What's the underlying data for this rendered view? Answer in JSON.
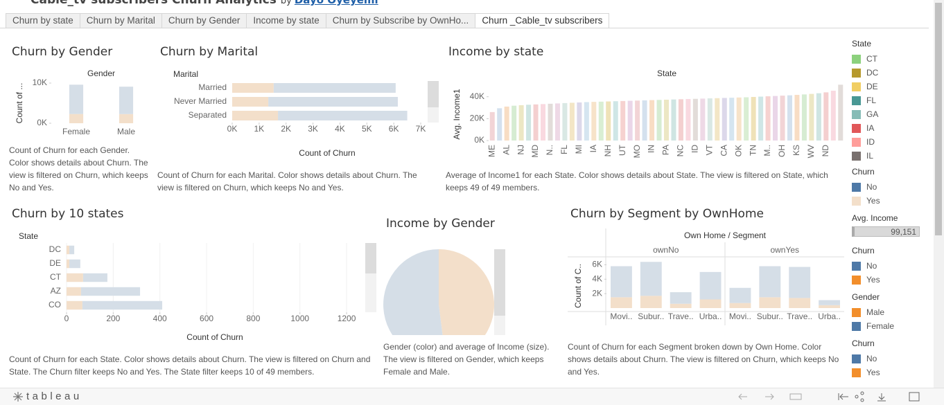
{
  "header": {
    "title": "Cable_tv subscribers Churn Analytics",
    "by": "by",
    "author": "Dayo Oyeyemi"
  },
  "tabs": [
    "Churn by state",
    "Churn by Marital",
    "Churn by Gender",
    "Income by state",
    "Churn by Subscribe by OwnHo...",
    "Churn _Cable_tv subscribers"
  ],
  "active_tab": 5,
  "chart_data": [
    {
      "type": "bar",
      "title": "Churn by Gender",
      "header": "Gender",
      "ylabel": "Count of ...",
      "categories": [
        "Female",
        "Male"
      ],
      "series": [
        {
          "color": "#f3dfca",
          "values": [
            2300,
            2280
          ]
        },
        {
          "color": "#d5dee7",
          "values": [
            7300,
            6820
          ]
        }
      ],
      "ylim": [
        0,
        10000
      ],
      "yticks": [
        {
          "value": 0,
          "label": "0K"
        },
        {
          "value": 10000,
          "label": "10K"
        }
      ],
      "caption": "Count of Churn for each Gender.  Color shows details about Churn.  The view is filtered on Churn, which keeps No and Yes."
    },
    {
      "type": "bar",
      "orientation": "horizontal",
      "title": "Churn by Marital",
      "header": "Marital",
      "xlabel": "Count of Churn",
      "categories": [
        "Married",
        "Never Married",
        "Separated"
      ],
      "series": [
        {
          "color": "#f3dfca",
          "values": [
            1540,
            1340,
            1700
          ]
        },
        {
          "color": "#d5dee7",
          "values": [
            4530,
            4810,
            4800
          ]
        }
      ],
      "xlim": [
        0,
        7000
      ],
      "xticks": [
        {
          "value": 0,
          "label": "0K"
        },
        {
          "value": 1000,
          "label": "1K"
        },
        {
          "value": 2000,
          "label": "2K"
        },
        {
          "value": 3000,
          "label": "3K"
        },
        {
          "value": 4000,
          "label": "4K"
        },
        {
          "value": 5000,
          "label": "5K"
        },
        {
          "value": 6000,
          "label": "6K"
        },
        {
          "value": 7000,
          "label": "7K"
        }
      ],
      "caption": "Count of Churn for each Marital.  Color shows details about Churn. The view is filtered on Churn, which keeps No and Yes."
    },
    {
      "type": "bar",
      "title": "Income by state",
      "header": "State",
      "ylabel": "Avg. Income1",
      "categories": [
        "ME",
        null,
        "AL",
        null,
        "NJ",
        null,
        "MD",
        null,
        "N..",
        null,
        "FL",
        null,
        "MI",
        null,
        "IA",
        null,
        "NH",
        null,
        "UT",
        null,
        "MO",
        null,
        "IN",
        null,
        "PA",
        null,
        "NC",
        null,
        "ID",
        null,
        "VT",
        null,
        "CA",
        null,
        "OK",
        null,
        "TN",
        null,
        "M..",
        null,
        "OH",
        null,
        "KS",
        null,
        "WV",
        null,
        "ND",
        null,
        null
      ],
      "values": [
        26000,
        29500,
        31000,
        31800,
        32300,
        32700,
        33000,
        33300,
        33600,
        33900,
        34200,
        34500,
        34800,
        35100,
        35300,
        35500,
        35700,
        35900,
        36100,
        36300,
        36500,
        36700,
        36900,
        37100,
        37300,
        37500,
        37700,
        37900,
        38100,
        38300,
        38500,
        38700,
        38900,
        39100,
        39300,
        39500,
        39800,
        40100,
        40400,
        40700,
        41000,
        41300,
        41700,
        42100,
        42600,
        43200,
        44000,
        45500,
        51000
      ],
      "palette": [
        "#f2d4d6",
        "#d4e1ee",
        "#f8ddc4",
        "#d6ecd2",
        "#ece7c4",
        "#cfe5e2",
        "#f4cfcf",
        "#f9d9e0",
        "#e2dcd9",
        "#eed9e6",
        "#d9e8e4",
        "#f3e6c6",
        "#dcd8ea",
        "#d5e5f0",
        "#f7e3c9",
        "#d9eed3",
        "#efe2b8",
        "#cfe6e6",
        "#f6d2d0",
        "#ead6e8"
      ],
      "ylim": [
        0,
        55000
      ],
      "yticks": [
        {
          "value": 0,
          "label": "0K"
        },
        {
          "value": 20000,
          "label": "20K"
        },
        {
          "value": 40000,
          "label": "40K"
        }
      ],
      "caption": "Average of Income1 for each State.  Color shows details about State. The view is filtered on State, which keeps 49 of 49 members."
    },
    {
      "type": "bar",
      "orientation": "horizontal",
      "title": "Churn by 10 states",
      "header": "State",
      "xlabel": "Count of Churn",
      "categories": [
        "DC",
        "DE",
        "CT",
        "AZ",
        "CO"
      ],
      "series": [
        {
          "color": "#f3dfca",
          "values": [
            12,
            12,
            71,
            62,
            68
          ]
        },
        {
          "color": "#d5dee7",
          "values": [
            21,
            47,
            104,
            253,
            342
          ]
        }
      ],
      "xlim": [
        0,
        1280
      ],
      "xticks": [
        0,
        200,
        400,
        600,
        800,
        1000,
        1200
      ],
      "grid": true,
      "caption": "Count of Churn for each State.  Color shows details about Churn. The view is filtered on Churn and State. The Churn filter keeps No and Yes. The State filter keeps 10 of 49 members."
    },
    {
      "type": "pie",
      "title": "Income by Gender",
      "values": [
        36200,
        39200
      ],
      "colors": [
        "#f3dfca",
        "#d5dee7"
      ],
      "caption": "Gender (color) and average of Income (size).  The view is filtered on Gender, which keeps Female and Male."
    },
    {
      "type": "bar",
      "title": "Churn by Segment by OwnHome",
      "header": "Own Home / Segment",
      "ylabel": "Count of C..",
      "groups": [
        "ownNo",
        "ownYes"
      ],
      "categories": [
        "Movi..",
        "Subur..",
        "Trave..",
        "Urba..",
        "Movi..",
        "Subur..",
        "Trave..",
        "Urba.."
      ],
      "series": [
        {
          "color": "#f3dfca",
          "values": [
            1500,
            1700,
            600,
            1200,
            700,
            1500,
            1400,
            400
          ]
        },
        {
          "color": "#d5dee7",
          "values": [
            4300,
            4700,
            1600,
            3800,
            2100,
            4300,
            4300,
            700
          ]
        }
      ],
      "ylim": [
        0,
        7000
      ],
      "yticks": [
        {
          "value": 2000,
          "label": "2K"
        },
        {
          "value": 4000,
          "label": "4K"
        },
        {
          "value": 6000,
          "label": "6K"
        }
      ],
      "caption": "Count of Churn for each Segment broken down by Own Home.  Color shows details about Churn. The view is filtered on Churn, which keeps No and Yes."
    }
  ],
  "legends": [
    {
      "title": "State",
      "items": [
        {
          "label": "CT",
          "color": "#8cd17d"
        },
        {
          "label": "DC",
          "color": "#b6992d"
        },
        {
          "label": "DE",
          "color": "#f1ce63"
        },
        {
          "label": "FL",
          "color": "#499894"
        },
        {
          "label": "GA",
          "color": "#86bcb6"
        },
        {
          "label": "IA",
          "color": "#e15759"
        },
        {
          "label": "ID",
          "color": "#ff9d9a"
        },
        {
          "label": "IL",
          "color": "#79706e"
        }
      ]
    },
    {
      "title": "Churn",
      "items": [
        {
          "label": "No",
          "color": "#4e79a7"
        },
        {
          "label": "Yes",
          "color": "#f3dfca"
        }
      ]
    },
    {
      "title": "Avg. Income",
      "label": "99,151"
    },
    {
      "title": "Churn",
      "items": [
        {
          "label": "No",
          "color": "#4e79a7"
        },
        {
          "label": "Yes",
          "color": "#f28e2b"
        }
      ]
    },
    {
      "title": "Gender",
      "items": [
        {
          "label": "Male",
          "color": "#f28e2b"
        },
        {
          "label": "Female",
          "color": "#4e79a7"
        }
      ]
    },
    {
      "title": "Churn",
      "items": [
        {
          "label": "No",
          "color": "#4e79a7"
        },
        {
          "label": "Yes",
          "color": "#f28e2b"
        }
      ]
    }
  ],
  "footer": {
    "brand": "tableau"
  }
}
